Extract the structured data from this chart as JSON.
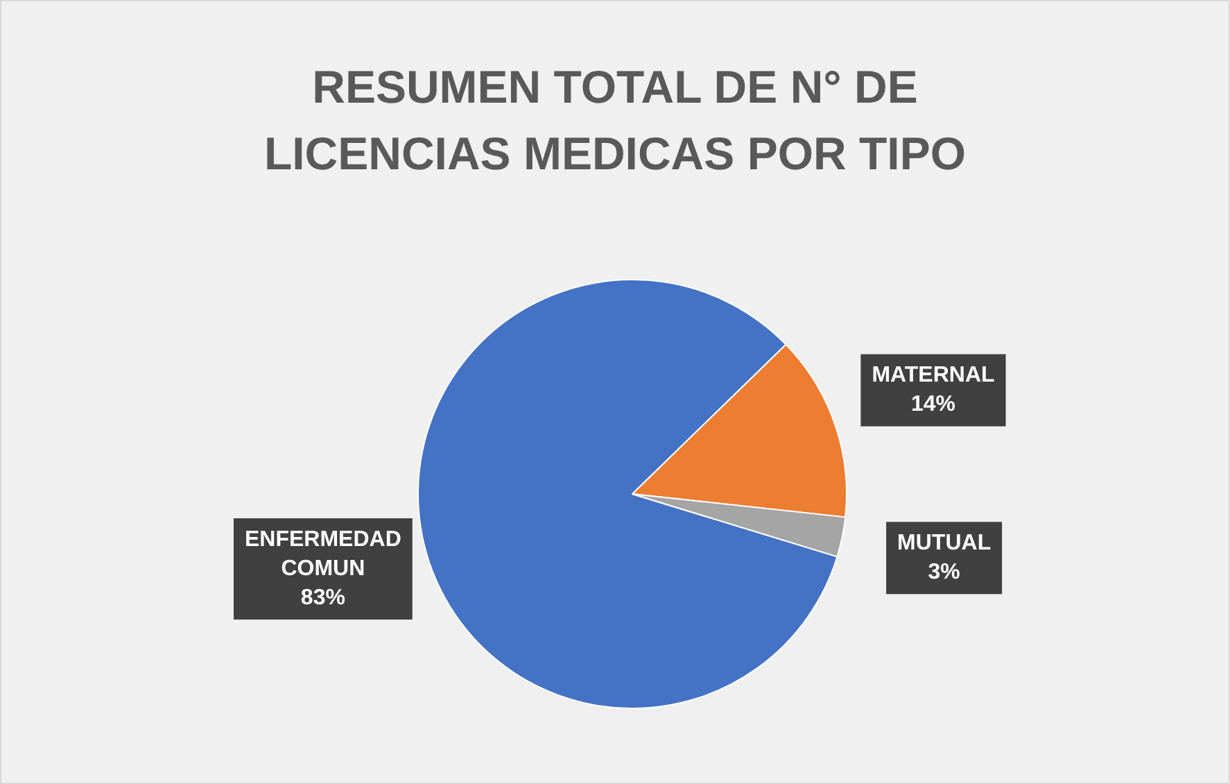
{
  "chart_data": {
    "type": "pie",
    "title": "RESUMEN TOTAL DE N° DE LICENCIAS MEDICAS POR TIPO",
    "categories": [
      "ENFERMEDAD COMUN",
      "MATERNAL",
      "MUTUAL"
    ],
    "values": [
      83,
      14,
      3
    ],
    "colors": [
      "#4472c4",
      "#ed7d31",
      "#a5a5a5"
    ],
    "value_labels": [
      "83%",
      "14%",
      "3%"
    ],
    "legend": false
  }
}
